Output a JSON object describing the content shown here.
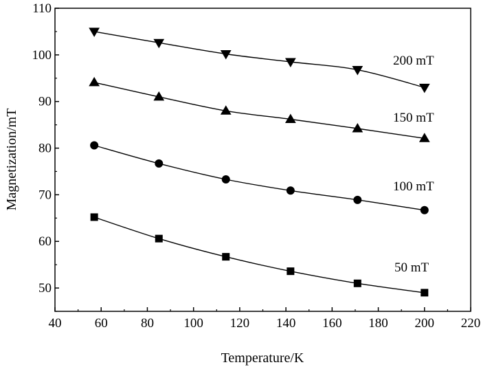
{
  "chart_data": {
    "type": "line",
    "title": "",
    "xlabel": "Temperature/K",
    "ylabel": "Magnetization/mT",
    "xlim": [
      40,
      220
    ],
    "ylim": [
      45,
      110
    ],
    "xticks": [
      40,
      60,
      80,
      100,
      120,
      140,
      160,
      180,
      200,
      220
    ],
    "yticks": [
      50,
      60,
      70,
      80,
      90,
      100,
      110
    ],
    "grid": false,
    "legend": "none",
    "x": [
      57,
      85,
      114,
      142,
      171,
      200
    ],
    "series": [
      {
        "name": "200 mT",
        "marker": "triangle-down",
        "values": [
          105.0,
          102.6,
          100.2,
          98.5,
          96.8,
          93.0
        ]
      },
      {
        "name": "150 mT",
        "marker": "triangle-up",
        "values": [
          94.1,
          91.0,
          88.0,
          86.2,
          84.2,
          82.1
        ]
      },
      {
        "name": "100 mT",
        "marker": "circle",
        "values": [
          80.6,
          76.7,
          73.3,
          70.9,
          68.9,
          66.7
        ]
      },
      {
        "name": "50 mT",
        "marker": "square",
        "values": [
          65.2,
          60.6,
          56.7,
          53.6,
          51.0,
          49.0
        ]
      }
    ],
    "colors": {
      "line": "#000000",
      "marker": "#000000"
    }
  }
}
